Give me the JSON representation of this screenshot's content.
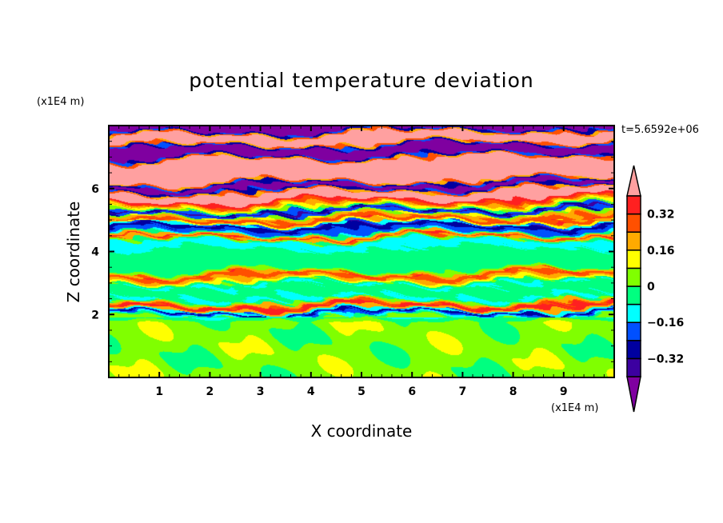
{
  "chart_data": {
    "type": "heatmap",
    "subtype": "filled-contour",
    "title": "potential temperature deviation",
    "xlabel": "X coordinate",
    "ylabel": "Z coordinate",
    "x_unit": "(x1E4 m)",
    "y_unit": "(x1E4 m)",
    "time_label": "t=5.6592e+06",
    "xlim": [
      0,
      10
    ],
    "ylim": [
      0,
      8
    ],
    "xticks": [
      "1",
      "2",
      "3",
      "4",
      "5",
      "6",
      "7",
      "8",
      "9"
    ],
    "xtick_values": [
      1,
      2,
      3,
      4,
      5,
      6,
      7,
      8,
      9
    ],
    "yticks": [
      "2",
      "4",
      "6"
    ],
    "ytick_values": [
      2,
      4,
      6
    ],
    "contour_levels": [
      -0.4,
      -0.32,
      -0.24,
      -0.16,
      -0.08,
      0,
      0.08,
      0.16,
      0.24,
      0.32,
      0.4
    ],
    "colorbar_labels": [
      "0.32",
      "0.16",
      "0",
      "-0.16",
      "-0.32"
    ],
    "colorbar_label_values": [
      0.32,
      0.16,
      0,
      -0.16,
      -0.32
    ],
    "colors": {
      "below_min": "#7f00a0",
      "bins": [
        "#3c00a0",
        "#0000a0",
        "#0050ff",
        "#00ffff",
        "#00ff80",
        "#80ff00",
        "#ffff00",
        "#ffaa00",
        "#ff5000",
        "#ff2020"
      ],
      "above_max": "#ffa0a0"
    },
    "approx_profile_z_value": [
      [
        0.0,
        0.04
      ],
      [
        1.95,
        -0.2
      ],
      [
        2.05,
        -0.3
      ],
      [
        2.15,
        0.36
      ],
      [
        2.3,
        0.3
      ],
      [
        2.4,
        -0.1
      ],
      [
        2.6,
        -0.04
      ],
      [
        2.9,
        -0.1
      ],
      [
        3.05,
        0.2
      ],
      [
        3.2,
        0.3
      ],
      [
        3.35,
        -0.04
      ],
      [
        4.1,
        -0.12
      ],
      [
        4.4,
        0.34
      ],
      [
        4.55,
        -0.2
      ],
      [
        4.75,
        -0.3
      ],
      [
        4.9,
        0.3
      ],
      [
        5.05,
        0.2
      ],
      [
        5.2,
        -0.35
      ],
      [
        5.35,
        0.12
      ],
      [
        5.5,
        0.3
      ],
      [
        5.65,
        0.5
      ],
      [
        5.95,
        -0.5
      ],
      [
        6.2,
        0.5
      ],
      [
        6.55,
        0.45
      ],
      [
        6.65,
        0.5
      ],
      [
        7.0,
        -0.5
      ],
      [
        7.4,
        0.5
      ],
      [
        7.8,
        -0.5
      ]
    ]
  }
}
